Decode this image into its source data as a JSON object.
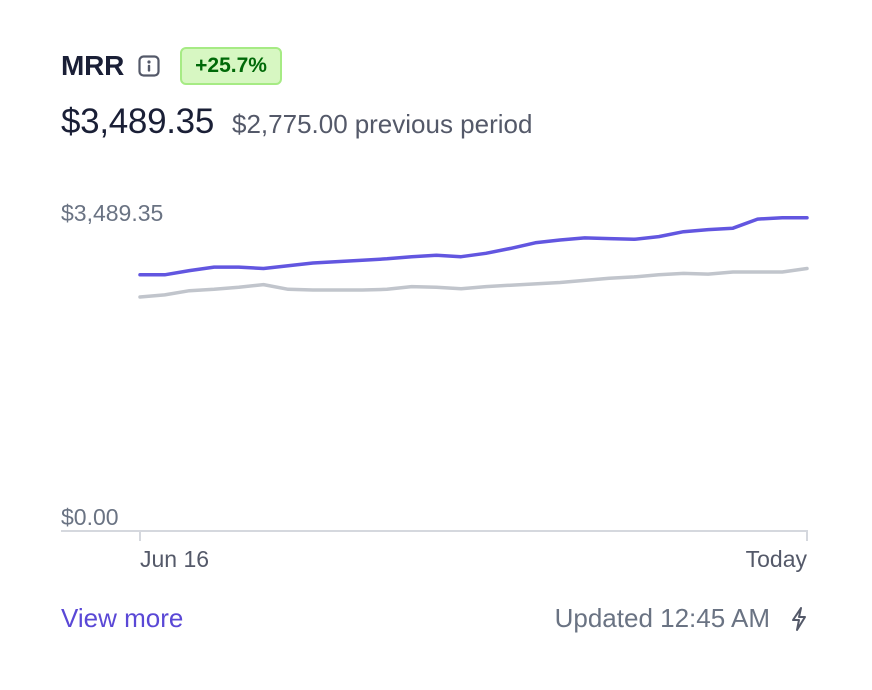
{
  "metric": {
    "title": "MRR",
    "info_icon": "info-icon",
    "change_badge": "+25.7%",
    "current_value": "$3,489.35",
    "previous_value": "$2,775.00",
    "previous_label": "previous period"
  },
  "colors": {
    "current_series": "#6256e0",
    "previous_series": "#c1c5cc",
    "badge_bg": "#d7f7c2",
    "badge_text": "#006908",
    "link": "#5a48d6",
    "axis_text": "#6a7383"
  },
  "chart_data": {
    "type": "line",
    "ylim": [
      0,
      3489.35
    ],
    "y_tick_labels": [
      "$3,489.35",
      "$0.00"
    ],
    "x_tick_labels": [
      "Jun 16",
      "Today"
    ],
    "grid": false,
    "legend": "none",
    "series": [
      {
        "values": [
          2780,
          2780,
          2828,
          2868,
          2868,
          2852,
          2884,
          2916,
          2932,
          2948,
          2964,
          2988,
          3004,
          2988,
          3027,
          3083,
          3147,
          3179,
          3203,
          3195,
          3187,
          3219,
          3275,
          3299,
          3315,
          3419,
          3435,
          3435
        ]
      },
      {
        "values": [
          2525,
          2549,
          2597,
          2613,
          2637,
          2668,
          2613,
          2605,
          2605,
          2605,
          2613,
          2645,
          2637,
          2621,
          2645,
          2661,
          2676,
          2692,
          2716,
          2740,
          2756,
          2780,
          2796,
          2788,
          2812,
          2812,
          2812,
          2852
        ]
      }
    ]
  },
  "footer": {
    "view_more_label": "View more",
    "updated_text": "Updated 12:45 AM",
    "refresh_icon": "lightning-bolt-icon"
  }
}
